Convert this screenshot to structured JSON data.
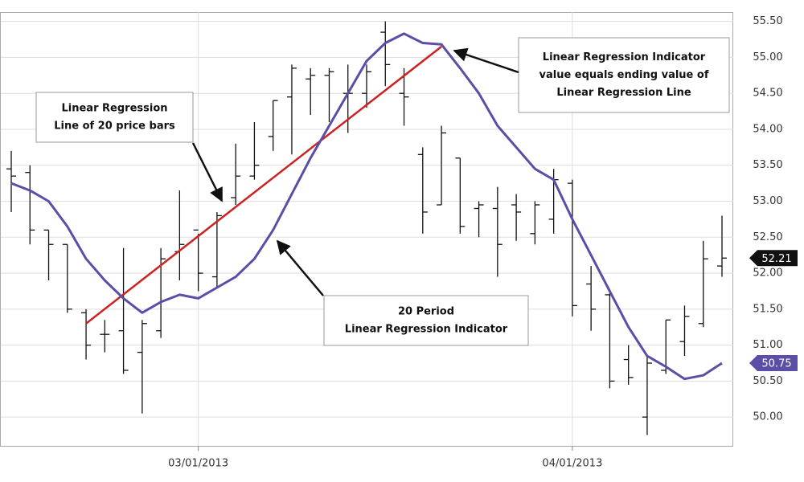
{
  "chart_data": {
    "type": "ohlc",
    "categories": [
      null,
      null,
      null,
      null,
      null,
      null,
      null,
      null,
      null,
      null,
      "03/01/2013",
      null,
      null,
      null,
      null,
      null,
      null,
      null,
      null,
      null,
      null,
      null,
      null,
      null,
      null,
      null,
      null,
      null,
      null,
      null,
      "04/01/2013",
      null,
      null,
      null,
      null,
      null,
      null,
      null,
      null
    ],
    "open": [
      53.45,
      53.4,
      52.6,
      52.4,
      51.45,
      51.15,
      51.2,
      50.9,
      51.2,
      52.3,
      52.6,
      51.95,
      53.05,
      53.35,
      53.9,
      54.45,
      54.7,
      54.75,
      54.5,
      54.5,
      55.35,
      54.5,
      53.65,
      52.95,
      53.6,
      52.9,
      52.9,
      52.95,
      52.55,
      52.75,
      53.25,
      51.85,
      51.7,
      50.8,
      50.0,
      50.65,
      51.05,
      51.3,
      52.1
    ],
    "high": [
      53.7,
      53.5,
      52.6,
      52.4,
      51.5,
      51.35,
      52.35,
      51.35,
      52.35,
      53.15,
      52.55,
      52.85,
      53.8,
      54.1,
      54.4,
      54.9,
      54.85,
      54.85,
      54.9,
      54.9,
      55.5,
      54.85,
      53.75,
      54.05,
      53.6,
      53.0,
      53.2,
      53.1,
      53.0,
      53.45,
      53.3,
      52.1,
      51.75,
      51.0,
      50.85,
      51.35,
      51.55,
      52.45,
      52.8
    ],
    "low": [
      52.85,
      52.4,
      51.9,
      51.45,
      50.8,
      50.9,
      50.6,
      50.05,
      51.1,
      51.9,
      51.75,
      51.8,
      52.95,
      53.3,
      53.7,
      53.65,
      54.2,
      54.1,
      53.95,
      54.3,
      54.6,
      54.05,
      52.55,
      52.95,
      52.55,
      52.5,
      51.95,
      52.45,
      52.4,
      52.55,
      51.4,
      51.2,
      50.4,
      50.45,
      49.75,
      50.6,
      50.85,
      51.25,
      51.95
    ],
    "close": [
      53.35,
      52.6,
      52.4,
      51.5,
      51.0,
      51.15,
      50.65,
      51.3,
      52.2,
      52.4,
      52.0,
      52.8,
      53.35,
      53.5,
      54.4,
      54.85,
      54.75,
      54.8,
      54.5,
      54.8,
      54.9,
      54.45,
      52.85,
      53.95,
      52.65,
      52.95,
      52.4,
      52.85,
      52.95,
      53.3,
      51.55,
      51.5,
      50.5,
      50.55,
      50.75,
      51.35,
      51.4,
      52.2,
      52.21
    ],
    "color": "#111111",
    "indicator": {
      "color": "#5b4ea6",
      "values": [
        53.25,
        53.15,
        53.0,
        52.65,
        52.2,
        51.9,
        51.65,
        51.45,
        51.6,
        51.7,
        51.65,
        51.8,
        51.95,
        52.2,
        52.6,
        53.1,
        53.6,
        54.05,
        54.5,
        54.95,
        55.2,
        55.33,
        55.2,
        55.18,
        54.85,
        54.5,
        54.05,
        53.75,
        53.45,
        53.3,
        52.75,
        52.25,
        51.75,
        51.25,
        50.85,
        50.7,
        50.53,
        50.58,
        50.75
      ]
    },
    "regression_line": {
      "color": "#cc2222",
      "indices": [
        4,
        23
      ],
      "values": [
        51.3,
        55.15
      ]
    },
    "ylim": [
      49.6,
      55.63
    ],
    "yticks": [
      {
        "value": 50,
        "label": "50.00"
      },
      {
        "value": 50.5,
        "label": "50.50"
      },
      {
        "value": 51,
        "label": "51.00"
      },
      {
        "value": 51.5,
        "label": "51.50"
      },
      {
        "value": 52,
        "label": "52.00"
      },
      {
        "value": 52.5,
        "label": "52.50"
      },
      {
        "value": 53,
        "label": "53.00"
      },
      {
        "value": 53.5,
        "label": "53.50"
      },
      {
        "value": 54,
        "label": "54.00"
      },
      {
        "value": 54.5,
        "label": "54.50"
      },
      {
        "value": 55,
        "label": "55.00"
      },
      {
        "value": 55.5,
        "label": "55.50"
      }
    ],
    "grid": true,
    "annotations": [
      {
        "lines": [
          "Linear Regression",
          "Line of 20 price bars"
        ]
      },
      {
        "lines": [
          "20 Period",
          "Linear Regression Indicator"
        ]
      },
      {
        "lines": [
          "Linear Regression Indicator",
          "value equals ending value of",
          "Linear Regression Line"
        ]
      }
    ]
  }
}
